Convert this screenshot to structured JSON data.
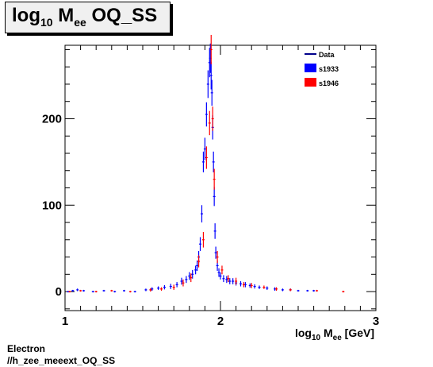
{
  "title": {
    "main": "log",
    "sub": "10",
    "rest": " M",
    "sub2": "ee",
    "tail": " OQ_SS"
  },
  "footer": {
    "line1": "Electron",
    "line2": "//h_zee_meeext_OQ_SS"
  },
  "chart_data": {
    "type": "scatter",
    "title": "log10 Mee OQ_SS",
    "xlabel": "log10 Mee [GeV]",
    "ylabel": "",
    "xlim": [
      1,
      3
    ],
    "ylim": [
      -22,
      285
    ],
    "x_ticks": [
      1,
      2,
      3
    ],
    "y_ticks": [
      0,
      100,
      200
    ],
    "legend_position": "top-right",
    "legend": [
      {
        "label": "Data",
        "color": "#00008b",
        "style": "line"
      },
      {
        "label": "s1933",
        "color": "#0000ff",
        "style": "box"
      },
      {
        "label": "s1946",
        "color": "#ff0000",
        "style": "box"
      }
    ],
    "series": [
      {
        "name": "s1933",
        "color": "#0000ff",
        "x": [
          1.02,
          1.05,
          1.08,
          1.12,
          1.18,
          1.25,
          1.32,
          1.38,
          1.45,
          1.52,
          1.56,
          1.6,
          1.64,
          1.68,
          1.72,
          1.75,
          1.78,
          1.8,
          1.82,
          1.84,
          1.85,
          1.86,
          1.87,
          1.88,
          1.89,
          1.9,
          1.91,
          1.92,
          1.93,
          1.935,
          1.94,
          1.945,
          1.95,
          1.955,
          1.96,
          1.965,
          1.97,
          1.98,
          1.99,
          2.0,
          2.02,
          2.04,
          2.06,
          2.08,
          2.1,
          2.13,
          2.16,
          2.19,
          2.22,
          2.25,
          2.3,
          2.35,
          2.4,
          2.45,
          2.5,
          2.56,
          2.6
        ],
        "y": [
          0,
          1,
          2,
          1,
          0,
          1,
          0,
          1,
          0,
          2,
          3,
          4,
          5,
          6,
          8,
          12,
          14,
          18,
          20,
          25,
          30,
          40,
          55,
          90,
          150,
          165,
          205,
          240,
          265,
          270,
          250,
          230,
          190,
          150,
          110,
          70,
          45,
          30,
          22,
          18,
          15,
          14,
          12,
          12,
          10,
          9,
          8,
          7,
          6,
          5,
          4,
          3,
          2,
          2,
          1,
          1,
          1
        ],
        "err": [
          1,
          1,
          1.5,
          1,
          1,
          1,
          1,
          1,
          1,
          1.5,
          2,
          2,
          2.5,
          3,
          3,
          4,
          4,
          4.5,
          5,
          5,
          6,
          7,
          8,
          10,
          12,
          13,
          14,
          16,
          17,
          17,
          16,
          15,
          14,
          12,
          11,
          9,
          7,
          6,
          5,
          4,
          4,
          4,
          3.5,
          3.5,
          3,
          3,
          3,
          2.5,
          2.5,
          2,
          2,
          2,
          1.5,
          1.5,
          1,
          1,
          1
        ]
      },
      {
        "name": "s1946",
        "color": "#ff0000",
        "x": [
          1.03,
          1.1,
          1.2,
          1.3,
          1.42,
          1.55,
          1.62,
          1.7,
          1.76,
          1.81,
          1.86,
          1.89,
          1.91,
          1.93,
          1.94,
          1.95,
          1.96,
          1.98,
          2.01,
          2.05,
          2.1,
          2.15,
          2.2,
          2.28,
          2.36,
          2.45,
          2.62,
          2.79
        ],
        "y": [
          0,
          1,
          0,
          1,
          0,
          2,
          3,
          5,
          10,
          16,
          35,
          60,
          155,
          195,
          280,
          200,
          130,
          40,
          25,
          15,
          12,
          8,
          7,
          5,
          3,
          2,
          1,
          0
        ],
        "err": [
          1,
          1,
          1,
          1,
          1,
          2,
          2,
          3,
          4,
          5,
          7,
          9,
          13,
          14,
          17,
          14,
          12,
          7,
          5,
          4,
          4,
          3,
          3,
          2,
          2,
          1.5,
          1,
          1
        ]
      }
    ]
  }
}
